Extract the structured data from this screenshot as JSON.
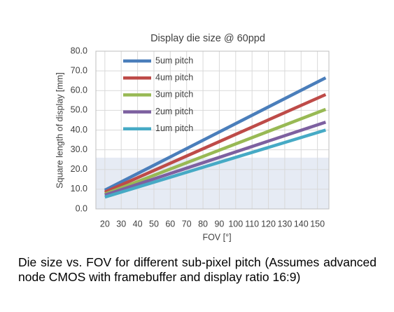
{
  "chart_data": {
    "type": "line",
    "title": "Display die size @ 60ppd",
    "x_label": "FOV [°]",
    "y_label": "Square length of display [mm]",
    "x": [
      20,
      155
    ],
    "series": [
      {
        "name": "5um pitch",
        "color": "#4a7ebb",
        "values": [
          9.5,
          66.5
        ]
      },
      {
        "name": "4um pitch",
        "color": "#be4b48",
        "values": [
          8.5,
          58
        ]
      },
      {
        "name": "3um pitch",
        "color": "#98b954",
        "values": [
          7.5,
          50.5
        ]
      },
      {
        "name": "2um pitch",
        "color": "#7d60a0",
        "values": [
          7,
          44
        ]
      },
      {
        "name": "1um pitch",
        "color": "#46aac5",
        "values": [
          6,
          40
        ]
      }
    ],
    "xlim": [
      14.5,
      157
    ],
    "xticks": [
      20,
      30,
      40,
      50,
      60,
      70,
      80,
      90,
      100,
      110,
      120,
      130,
      140,
      150
    ],
    "ylim": [
      0,
      80
    ],
    "yticks": [
      {
        "value": 0,
        "label": "0.0"
      },
      {
        "value": 10,
        "label": "10.0"
      },
      {
        "value": 20,
        "label": "20.0"
      },
      {
        "value": 30,
        "label": "30.0"
      },
      {
        "value": 40,
        "label": "40.0"
      },
      {
        "value": 50,
        "label": "50.0"
      },
      {
        "value": 60,
        "label": "60.0"
      },
      {
        "value": 70,
        "label": "70.0"
      },
      {
        "value": 80,
        "label": "80.0"
      }
    ],
    "highlight_ylim": [
      0,
      26
    ],
    "highlight_color": "#e6ebf4",
    "grid": true,
    "legend": "upper-left"
  },
  "caption": "Die size vs. FOV for different sub-pixel pitch (Assumes advanced node CMOS with framebuffer and display ratio 16:9)"
}
